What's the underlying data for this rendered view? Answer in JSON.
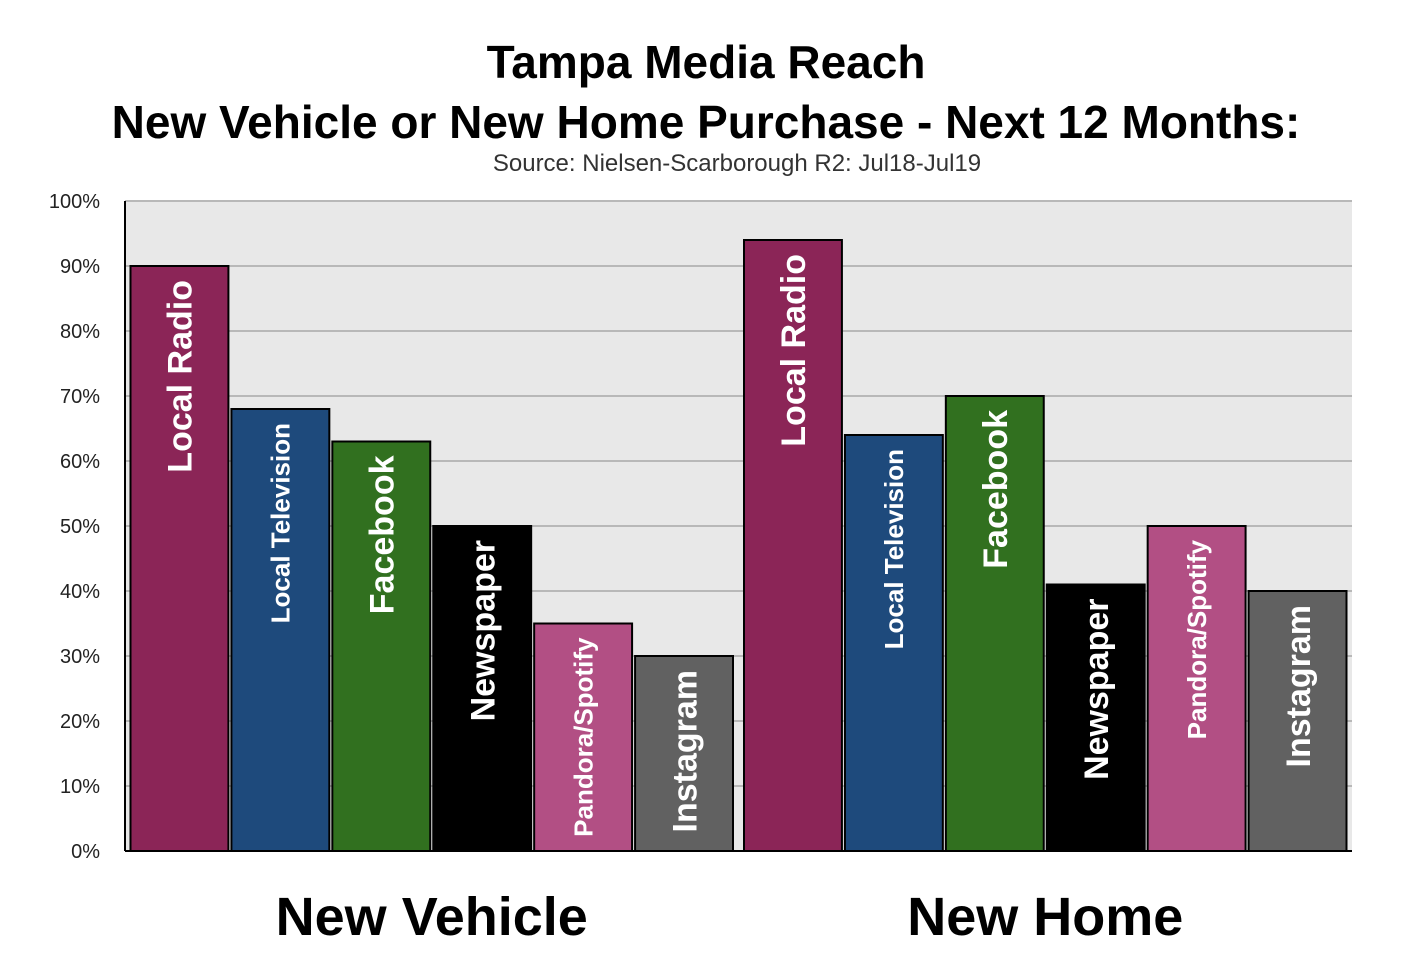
{
  "chart_data": {
    "type": "bar",
    "title": "Tampa Media Reach",
    "subtitle": "New Vehicle or New Home Purchase - Next 12 Months:",
    "source": "Source: Nielsen-Scarborough R2: Jul18-Jul19",
    "categories": [
      "New Vehicle",
      "New Home"
    ],
    "series": [
      {
        "name": "Local Radio",
        "color": "#8b2557",
        "values": [
          90,
          94
        ]
      },
      {
        "name": "Local Television",
        "color": "#1e4a7c",
        "values": [
          68,
          64
        ]
      },
      {
        "name": "Facebook",
        "color": "#31701f",
        "values": [
          63,
          70
        ]
      },
      {
        "name": "Newspaper",
        "color": "#000000",
        "values": [
          50,
          41
        ]
      },
      {
        "name": "Pandora/Spotify",
        "color": "#b24f84",
        "values": [
          35,
          50
        ]
      },
      {
        "name": "Instagram",
        "color": "#616161",
        "values": [
          30,
          40
        ]
      }
    ],
    "ylim": [
      0,
      100
    ],
    "yticks": [
      "0%",
      "10%",
      "20%",
      "30%",
      "40%",
      "50%",
      "60%",
      "70%",
      "80%",
      "90%",
      "100%"
    ],
    "grid": true,
    "plot_background": "#e8e8e8"
  }
}
